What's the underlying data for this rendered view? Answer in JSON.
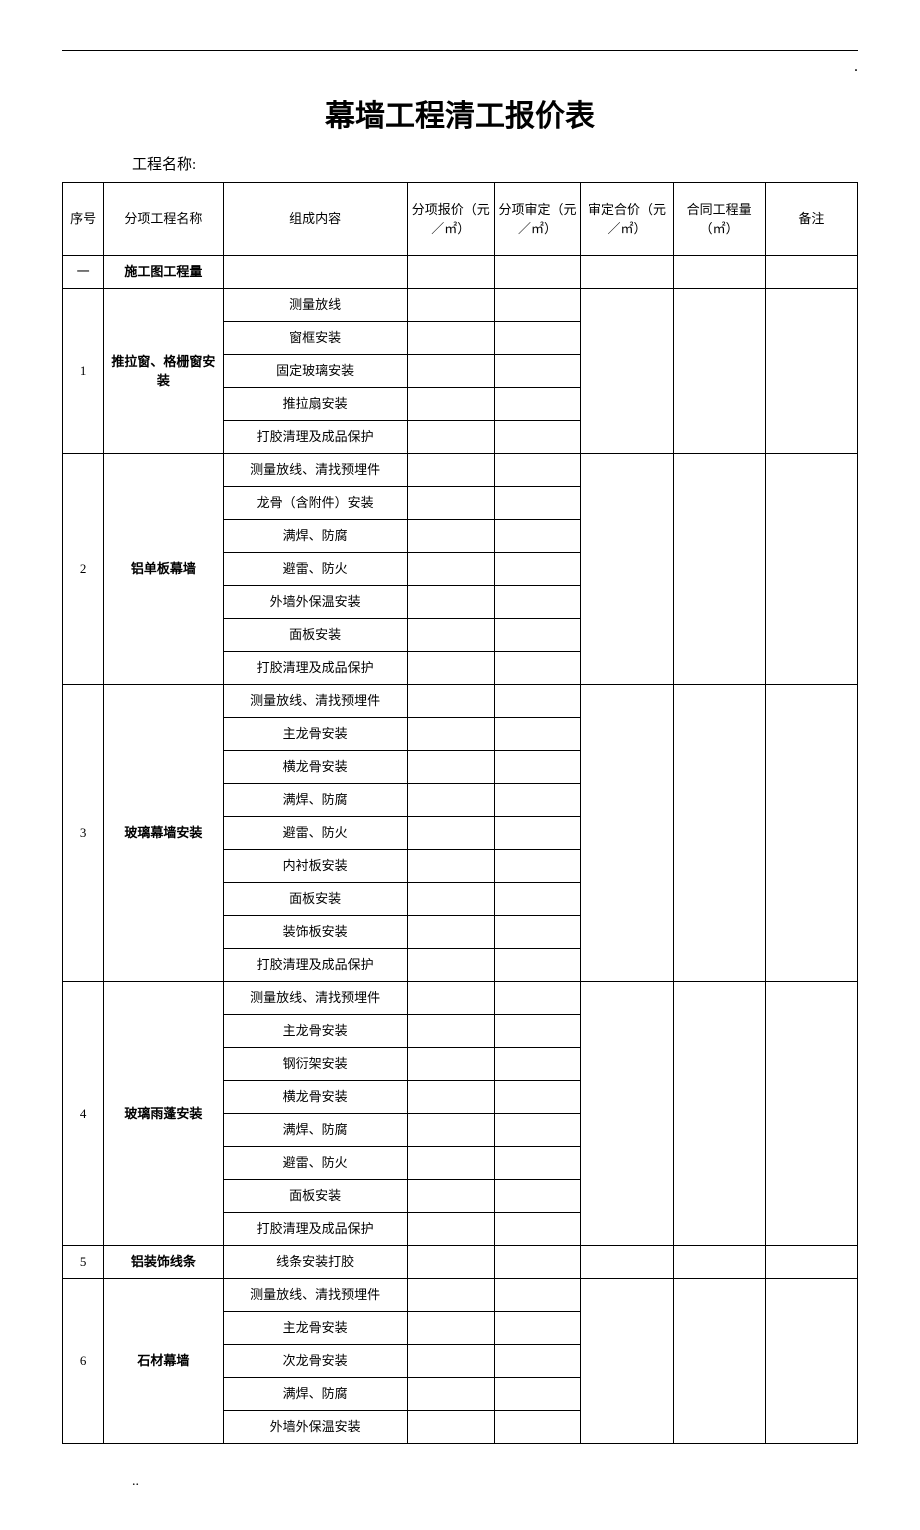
{
  "title": "幕墙工程清工报价表",
  "project_label": "工程名称:",
  "top_dot": ".",
  "footer": "..",
  "table": {
    "headers": {
      "seq": "序号",
      "name": "分项工程名称",
      "composition": "组成内容",
      "sub_quote": "分项报价（元／㎡）",
      "sub_audit": "分项审定（元／㎡）",
      "audit_total": "审定合价（元／㎡）",
      "contract_qty": "合同工程量（㎡）",
      "note": "备注"
    },
    "intro_row": {
      "seq": "一",
      "name": "施工图工程量"
    },
    "sections": [
      {
        "seq": "1",
        "name": "推拉窗、格栅窗安装",
        "components": [
          "测量放线",
          "窗框安装",
          "固定玻璃安装",
          "推拉扇安装",
          "打胶清理及成品保护"
        ]
      },
      {
        "seq": "2",
        "name": "铝单板幕墙",
        "components": [
          "测量放线、清找预埋件",
          "龙骨（含附件）安装",
          "满焊、防腐",
          "避雷、防火",
          "外墙外保温安装",
          "面板安装",
          "打胶清理及成品保护"
        ]
      },
      {
        "seq": "3",
        "name": "玻璃幕墙安装",
        "components": [
          "测量放线、清找预埋件",
          "主龙骨安装",
          "横龙骨安装",
          "满焊、防腐",
          "避雷、防火",
          "内衬板安装",
          "面板安装",
          "装饰板安装",
          "打胶清理及成品保护"
        ]
      },
      {
        "seq": "4",
        "name": "玻璃雨蓬安装",
        "components": [
          "测量放线、清找预埋件",
          "主龙骨安装",
          "钢衍架安装",
          "横龙骨安装",
          "满焊、防腐",
          "避雷、防火",
          "面板安装",
          "打胶清理及成品保护"
        ]
      },
      {
        "seq": "5",
        "name": "铝装饰线条",
        "components": [
          "线条安装打胶"
        ]
      },
      {
        "seq": "6",
        "name": "石材幕墙",
        "components": [
          "测量放线、清找预埋件",
          "主龙骨安装",
          "次龙骨安装",
          "满焊、防腐",
          "外墙外保温安装"
        ]
      }
    ]
  },
  "style": {
    "background_color": "#ffffff",
    "text_color": "#000000",
    "border_color": "#000000",
    "title_fontsize": 30,
    "header_fontsize": 13,
    "cell_fontsize": 13,
    "name_bold_fontsize": 14
  }
}
